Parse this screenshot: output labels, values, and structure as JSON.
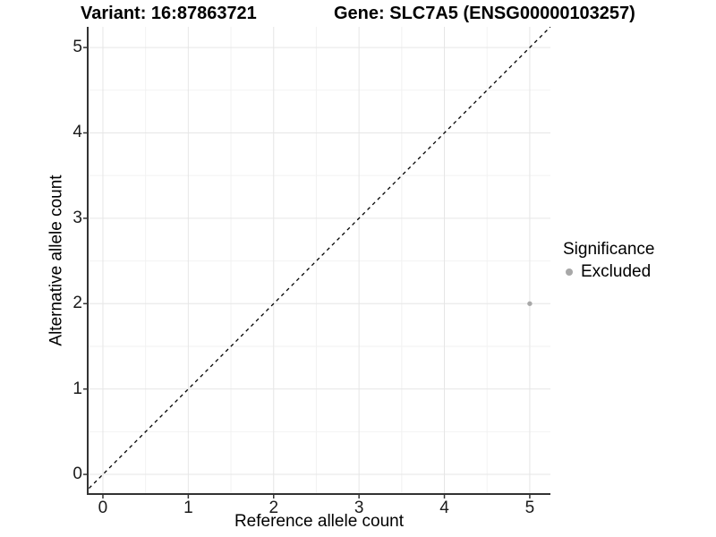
{
  "titles": {
    "variant": "Variant: 16:87863721",
    "gene": "Gene: SLC7A5 (ENSG00000103257)"
  },
  "axes": {
    "x_label": "Reference allele count",
    "y_label": "Alternative allele count"
  },
  "legend": {
    "title": "Significance",
    "items": [
      {
        "label": "Excluded",
        "color": "#a8a8a8"
      }
    ]
  },
  "chart_data": {
    "type": "scatter",
    "title": "Variant: 16:87863721   Gene: SLC7A5 (ENSG00000103257)",
    "xlabel": "Reference allele count",
    "ylabel": "Alternative allele count",
    "x_ticks": [
      0,
      1,
      2,
      3,
      4,
      5
    ],
    "y_ticks": [
      0,
      1,
      2,
      3,
      4,
      5
    ],
    "xlim": [
      -0.178,
      5.242
    ],
    "ylim": [
      -0.23,
      5.242
    ],
    "grid": "major+minor",
    "legend_position": "right",
    "series": [
      {
        "name": "Excluded",
        "points": [
          {
            "x": 5,
            "y": 2
          }
        ]
      }
    ],
    "identity_line": {
      "style": "dashed",
      "from": [
        -0.4,
        -0.4
      ],
      "to": [
        5.6,
        5.6
      ]
    },
    "colors": {
      "point": "#a8a8a8",
      "grid_major": "#e6e6e6",
      "grid_minor": "#f2f2f2",
      "axis": "#333333",
      "dashed_line": "#000000",
      "background": "#ffffff"
    }
  }
}
